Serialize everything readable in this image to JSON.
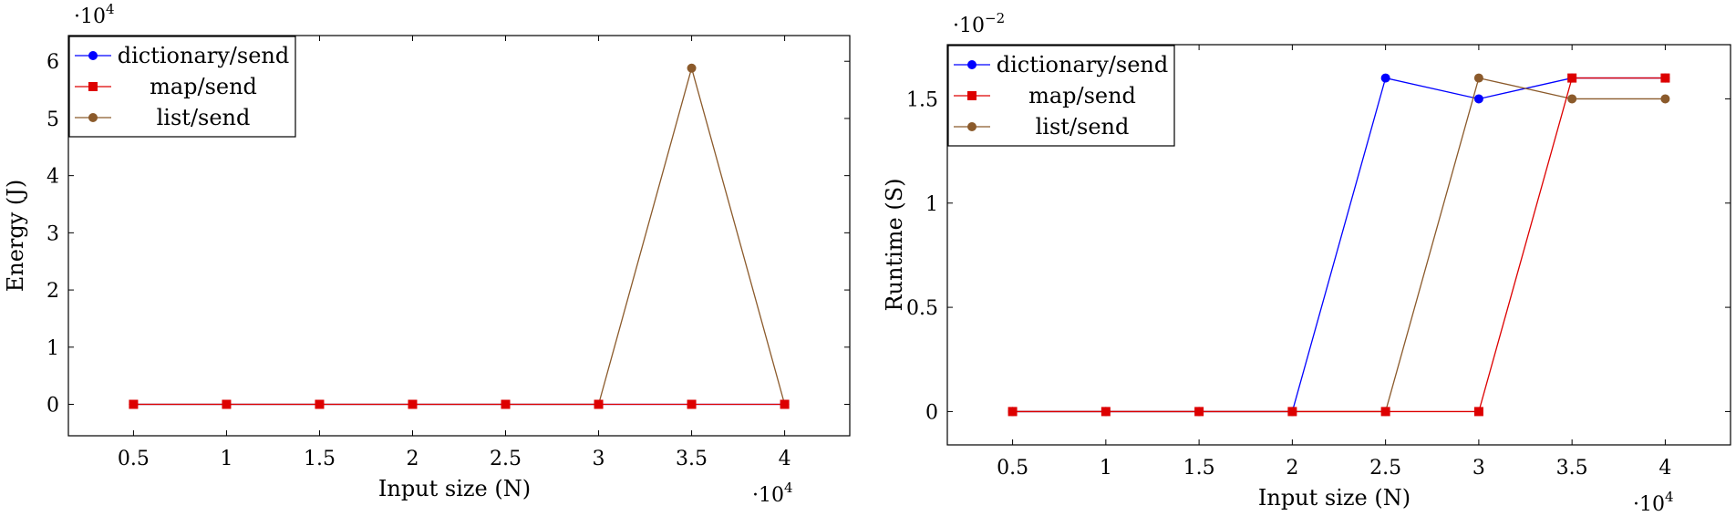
{
  "chart_data": [
    {
      "type": "line",
      "xlabel": "Input size (N)",
      "ylabel": "Energy (J)",
      "x_multiplier": {
        "base": "·10",
        "exp": "4"
      },
      "y_multiplier": {
        "base": "·10",
        "exp": "4"
      },
      "x": [
        0.5,
        1,
        1.5,
        2,
        2.5,
        3,
        3.5,
        4
      ],
      "x_tick_labels": [
        "0.5",
        "1",
        "1.5",
        "2",
        "2.5",
        "3",
        "3.5",
        "4"
      ],
      "y_ticks": [
        0,
        1,
        2,
        3,
        4,
        5,
        6
      ],
      "y_tick_labels": [
        "0",
        "1",
        "2",
        "3",
        "4",
        "5",
        "6"
      ],
      "xlim": [
        0.15,
        4.35
      ],
      "ylim": [
        -0.55,
        6.45
      ],
      "legend_position": "top-left",
      "grid": false,
      "series": [
        {
          "name": "dictionary/send",
          "color": "#0000ff",
          "marker": "circle",
          "values": [
            0,
            0,
            0,
            0,
            0,
            0,
            0,
            0
          ]
        },
        {
          "name": "map/send",
          "color": "#dd0000",
          "marker": "square",
          "values": [
            0,
            0,
            0,
            0,
            0,
            0,
            0,
            0
          ]
        },
        {
          "name": "list/send",
          "color": "#8b5a2b",
          "marker": "circle",
          "values": [
            0,
            0,
            0,
            0,
            0,
            0,
            5.88,
            0
          ]
        }
      ]
    },
    {
      "type": "line",
      "xlabel": "Input size (N)",
      "ylabel": "Runtime (S)",
      "x_multiplier": {
        "base": "·10",
        "exp": "4"
      },
      "y_multiplier": {
        "base": "·10",
        "exp": "−2"
      },
      "x": [
        0.5,
        1,
        1.5,
        2,
        2.5,
        3,
        3.5,
        4
      ],
      "x_tick_labels": [
        "0.5",
        "1",
        "1.5",
        "2",
        "2.5",
        "3",
        "3.5",
        "4"
      ],
      "y_ticks": [
        0,
        0.5,
        1,
        1.5
      ],
      "y_tick_labels": [
        "0",
        "0.5",
        "1",
        "1.5"
      ],
      "xlim": [
        0.15,
        4.35
      ],
      "ylim": [
        -0.16,
        1.76
      ],
      "legend_position": "top-left",
      "grid": false,
      "series": [
        {
          "name": "dictionary/send",
          "color": "#0000ff",
          "marker": "circle",
          "values": [
            0,
            0,
            0,
            0,
            1.6,
            1.5,
            1.6,
            1.6
          ]
        },
        {
          "name": "map/send",
          "color": "#dd0000",
          "marker": "square",
          "values": [
            0,
            0,
            0,
            0,
            0,
            0,
            1.6,
            1.6
          ]
        },
        {
          "name": "list/send",
          "color": "#8b5a2b",
          "marker": "circle",
          "values": [
            0,
            0,
            0,
            0,
            0,
            1.6,
            1.5,
            1.5
          ]
        }
      ]
    }
  ]
}
